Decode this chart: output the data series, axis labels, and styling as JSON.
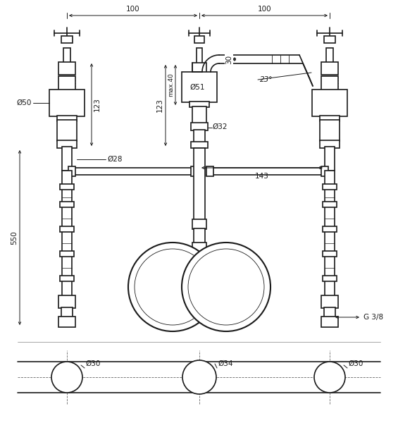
{
  "bg_color": "#ffffff",
  "line_color": "#1a1a1a",
  "font_size_label": 7.5,
  "fig_w": 5.65,
  "fig_h": 6.0,
  "dim_100_left_label": "100",
  "dim_100_right_label": "100",
  "dim_123_left_label": "123",
  "dim_123_center_label": "123",
  "dim_max40_label": "max.40",
  "dim_50_label": "Ø50",
  "dim_28_label": "Ø28",
  "dim_51_label": "Ø51",
  "dim_32_label": "Ø32",
  "dim_30_label": "30",
  "dim_23_label": "23°",
  "dim_143_label": "143",
  "dim_550_label": "550",
  "dim_G38_label": "G 3/8",
  "dim_30a_label": "Ø30",
  "dim_34_label": "Ø34",
  "dim_30b_label": "Ø30"
}
